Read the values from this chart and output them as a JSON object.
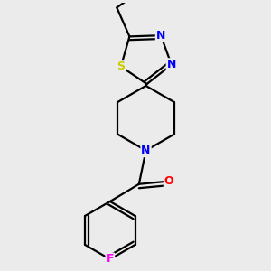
{
  "background_color": "#ebebeb",
  "bond_color": "#000000",
  "atom_colors": {
    "S": "#cccc00",
    "N": "#0000ff",
    "O": "#ff0000",
    "F": "#ff00ff",
    "C": "#000000"
  },
  "line_width": 1.6,
  "figsize": [
    3.0,
    3.0
  ],
  "dpi": 100
}
